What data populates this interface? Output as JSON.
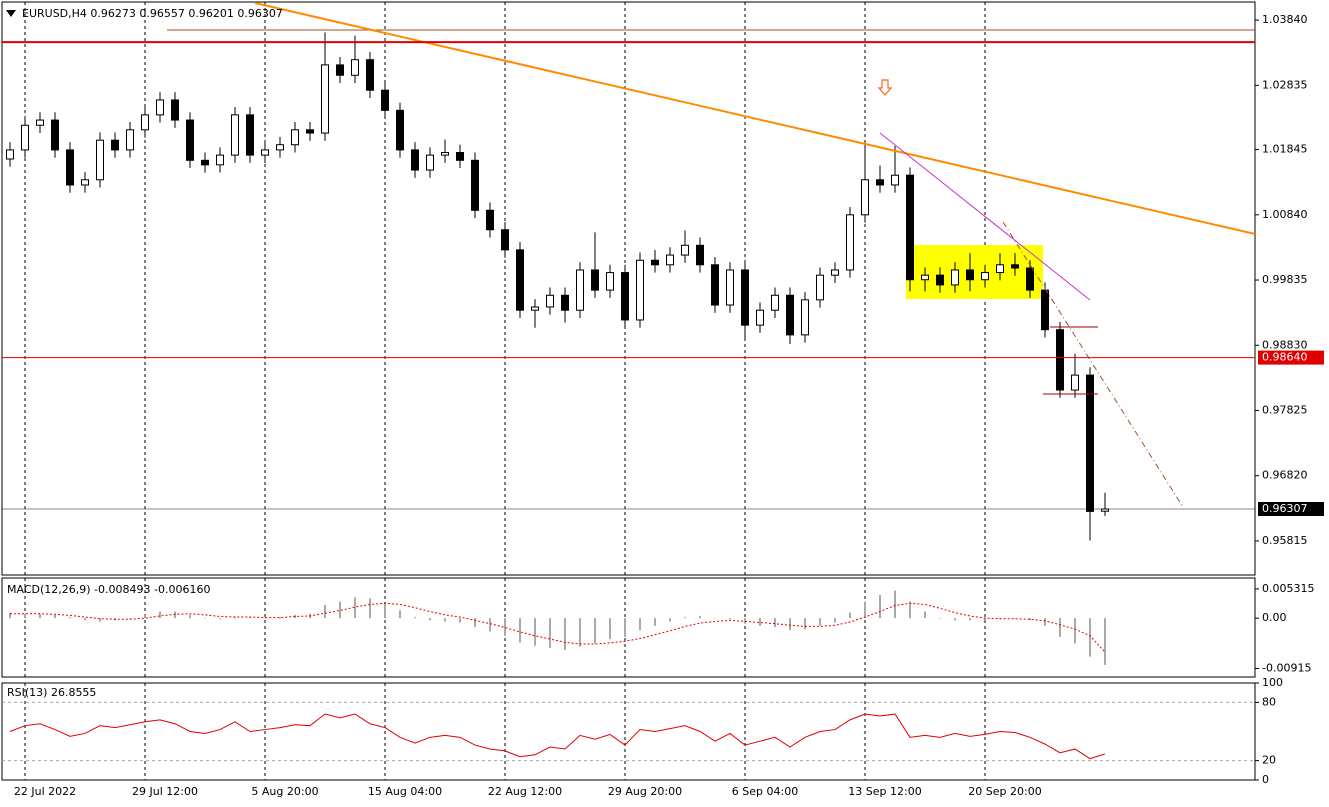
{
  "chart_data": [
    {
      "type": "candlestick",
      "title": "EURUSD,H4  0.96273 0.96557 0.96201 0.96307",
      "up_color": "#ffffff",
      "down_color": "#000000",
      "open": [
        1.017,
        1.0184,
        1.0222,
        1.023,
        1.0184,
        1.013,
        1.0138,
        1.0199,
        1.0184,
        1.0215,
        1.0238,
        1.0261,
        1.023,
        1.0168,
        1.0161,
        1.0176,
        1.0238,
        1.0176,
        1.0184,
        1.0192,
        1.0215,
        1.021,
        1.0315,
        1.0299,
        1.0323,
        1.0276,
        1.0245,
        1.0184,
        1.0153,
        1.0176,
        1.018,
        1.0168,
        1.0091,
        1.0061,
        1.003,
        0.9937,
        0.9942,
        0.996,
        0.9937,
        0.9999,
        0.9968,
        0.9995,
        0.9922,
        1.0014,
        1.0007,
        1.0022,
        1.0037,
        1.0007,
        0.9945,
        0.9999,
        0.9914,
        0.9937,
        0.996,
        0.9899,
        0.9953,
        0.9991,
        0.9999,
        1.0084,
        1.0138,
        1.013,
        1.0145,
        0.9984,
        0.9991,
        0.9976,
        0.9999,
        0.9984,
        0.9995,
        1.0007,
        1.0002,
        0.9968,
        0.9907,
        0.9814,
        0.9837,
        0.96273
      ],
      "high": [
        1.0196,
        1.0234,
        1.0242,
        1.0242,
        1.0196,
        1.015,
        1.0211,
        1.0211,
        1.0227,
        1.025,
        1.0273,
        1.0273,
        1.0242,
        1.018,
        1.0188,
        1.025,
        1.025,
        1.0196,
        1.0204,
        1.0227,
        1.0227,
        1.0365,
        1.0327,
        1.036,
        1.0335,
        1.0288,
        1.0257,
        1.0196,
        1.0188,
        1.02,
        1.0192,
        1.018,
        1.0103,
        1.0073,
        1.0042,
        0.9954,
        0.9972,
        0.9972,
        1.0011,
        1.0057,
        1.0007,
        1.0007,
        1.0026,
        1.003,
        1.0034,
        1.006,
        1.0049,
        1.0019,
        1.0011,
        1.0011,
        0.9949,
        0.9972,
        0.9972,
        0.9965,
        1.0003,
        1.0011,
        1.0096,
        1.0195,
        1.016,
        1.019,
        1.0157,
        1.0003,
        1.0003,
        1.0011,
        1.0025,
        1.0007,
        1.0025,
        1.0025,
        1.0014,
        0.998,
        0.9919,
        0.987,
        0.9849,
        0.96557
      ],
      "low": [
        1.0158,
        1.0172,
        1.021,
        1.0172,
        1.0118,
        1.0118,
        1.0126,
        1.0172,
        1.0172,
        1.0203,
        1.0226,
        1.0218,
        1.0156,
        1.0149,
        1.0149,
        1.0164,
        1.0164,
        1.0164,
        1.0172,
        1.018,
        1.0198,
        1.0198,
        1.0287,
        1.0287,
        1.0264,
        1.0233,
        1.0172,
        1.0141,
        1.0141,
        1.0164,
        1.0156,
        1.0079,
        1.0049,
        1.0018,
        0.9925,
        0.991,
        0.993,
        0.9918,
        0.9925,
        0.9956,
        0.9956,
        0.991,
        0.991,
        0.9995,
        0.9995,
        1.001,
        0.9995,
        0.9933,
        0.9933,
        0.989,
        0.9902,
        0.9925,
        0.9885,
        0.9887,
        0.9941,
        0.9979,
        0.9987,
        1.0072,
        1.0118,
        1.0118,
        0.9966,
        0.9966,
        0.9964,
        0.9964,
        0.9966,
        0.9972,
        0.9983,
        0.999,
        0.9956,
        0.9895,
        0.9802,
        0.9802,
        0.9582,
        0.96201
      ],
      "close": [
        1.0184,
        1.0222,
        1.023,
        1.0184,
        1.013,
        1.0138,
        1.0199,
        1.0184,
        1.0215,
        1.0238,
        1.0261,
        1.023,
        1.0168,
        1.0161,
        1.0176,
        1.0238,
        1.0176,
        1.0184,
        1.0192,
        1.0215,
        1.021,
        1.0315,
        1.0299,
        1.0323,
        1.0276,
        1.0245,
        1.0184,
        1.0153,
        1.0176,
        1.018,
        1.0168,
        1.0091,
        1.0061,
        1.003,
        0.9937,
        0.9942,
        0.996,
        0.9937,
        0.9999,
        0.9968,
        0.9995,
        0.9922,
        1.0014,
        1.0007,
        1.0022,
        1.0037,
        1.0007,
        0.9945,
        0.9999,
        0.9914,
        0.9937,
        0.996,
        0.9899,
        0.9953,
        0.9991,
        0.9999,
        1.0084,
        1.0138,
        1.013,
        1.0145,
        0.9984,
        0.9991,
        0.9976,
        0.9999,
        0.9984,
        0.9995,
        1.0007,
        1.0002,
        0.9968,
        0.9907,
        0.9814,
        0.9837,
        0.9627,
        0.96307
      ],
      "xlim": [
        -0.667,
        83
      ],
      "ylim": [
        0.9529,
        1.0415
      ],
      "yticks": [
        {
          "value": 1.0384,
          "label": "1.03840"
        },
        {
          "value": 1.02835,
          "label": "1.02835"
        },
        {
          "value": 1.01845,
          "label": "1.01845"
        },
        {
          "value": 1.0084,
          "label": "1.00840"
        },
        {
          "value": 0.99835,
          "label": "0.99835"
        },
        {
          "value": 0.9883,
          "label": "0.98830"
        },
        {
          "value": 0.97825,
          "label": "0.97825"
        },
        {
          "value": 0.9682,
          "label": "0.96820"
        },
        {
          "value": 0.95815,
          "label": "0.95815"
        }
      ],
      "xticks": [
        {
          "value": 1,
          "label": "22 Jul 2022"
        },
        {
          "value": 9,
          "label": "29 Jul 12:00"
        },
        {
          "value": 17,
          "label": "5 Aug 20:00"
        },
        {
          "value": 25,
          "label": "15 Aug 04:00"
        },
        {
          "value": 33,
          "label": "22 Aug 12:00"
        },
        {
          "value": 41,
          "label": "29 Aug 20:00"
        },
        {
          "value": 49,
          "label": "6 Sep 04:00"
        },
        {
          "value": 57,
          "label": "13 Sep 12:00"
        },
        {
          "value": 65,
          "label": "20 Sep 20:00"
        }
      ],
      "hlines": [
        {
          "value": 1.035,
          "color": "#e00000"
        },
        {
          "value": 0.9864,
          "label": "0.98640",
          "color": "#e00000"
        },
        {
          "value": 0.96307,
          "label": "0.96307",
          "color": "#000000"
        }
      ]
    },
    {
      "type": "macd",
      "title": "MACD(12,26,9) -0.008493 -0.006160",
      "xlim": [
        -0.667,
        83
      ],
      "ylim": [
        -0.0107,
        0.0073
      ],
      "yticks": [
        0.005315,
        {
          "value": 0,
          "label": "0.00"
        },
        -0.00915
      ],
      "series": [
        {
          "color": "#a9a9a9",
          "values": [
            0.001,
            0.0008,
            0.0008,
            0.0006,
            0.0002,
            -0.0004,
            -0.0006,
            -0.0004,
            0.0,
            0.0006,
            0.0012,
            0.0012,
            0.0006,
            0.0,
            -0.0002,
            0.0002,
            0.0002,
            0.0,
            0.0002,
            0.0006,
            0.0008,
            0.0024,
            0.003,
            0.0038,
            0.0036,
            0.0028,
            0.0014,
            0.0002,
            -0.0004,
            -0.0006,
            -0.0008,
            -0.0016,
            -0.0024,
            -0.0032,
            -0.0044,
            -0.005,
            -0.0054,
            -0.0058,
            -0.0052,
            -0.0046,
            -0.0038,
            -0.0034,
            -0.0022,
            -0.0014,
            -0.0006,
            0.0002,
            0.0004,
            0.0,
            -0.0002,
            -0.001,
            -0.0014,
            -0.0016,
            -0.0022,
            -0.002,
            -0.0014,
            -0.0008,
            0.001,
            0.003,
            0.0042,
            0.005,
            0.003,
            0.0012,
            0.0,
            -0.0004,
            -0.0004,
            -0.0004,
            -0.0002,
            0.0,
            -0.0004,
            -0.0014,
            -0.0034,
            -0.0046,
            -0.007,
            -0.008493
          ]
        },
        {
          "color": "#e00000",
          "values": [
            0.0008,
            0.0008,
            0.0008,
            0.0007,
            0.0005,
            0.0002,
            -0.0001,
            -0.0002,
            -0.0002,
            0.0,
            0.0004,
            0.0007,
            0.0008,
            0.0006,
            0.0003,
            0.0002,
            0.0002,
            0.0001,
            0.0001,
            0.0003,
            0.0004,
            0.0009,
            0.0014,
            0.002,
            0.0025,
            0.0027,
            0.0025,
            0.0019,
            0.0012,
            0.0006,
            0.0002,
            -0.0004,
            -0.001,
            -0.0017,
            -0.0025,
            -0.0032,
            -0.0038,
            -0.0044,
            -0.0047,
            -0.0047,
            -0.0045,
            -0.0042,
            -0.0037,
            -0.003,
            -0.0023,
            -0.0015,
            -0.0009,
            -0.0006,
            -0.0004,
            -0.0006,
            -0.0008,
            -0.001,
            -0.0013,
            -0.0015,
            -0.0015,
            -0.0013,
            -0.0007,
            0.0002,
            0.0012,
            0.0023,
            0.0027,
            0.0025,
            0.0018,
            0.001,
            0.0004,
            0.0,
            -0.0001,
            -0.0001,
            -0.0002,
            -0.0005,
            -0.0012,
            -0.002,
            -0.0032,
            -0.00616
          ]
        }
      ]
    },
    {
      "type": "line",
      "title": "RSI(13) 26.8555",
      "color": "#e00000",
      "xlim": [
        -0.667,
        83
      ],
      "ylim": [
        0,
        100
      ],
      "yticks": [
        100,
        80,
        20,
        0
      ],
      "levels": [
        80,
        20
      ],
      "values": [
        50,
        56,
        58,
        52,
        45,
        48,
        56,
        54,
        57,
        60,
        62,
        58,
        50,
        48,
        52,
        60,
        50,
        52,
        54,
        57,
        56,
        68,
        64,
        68,
        58,
        54,
        44,
        38,
        44,
        46,
        44,
        36,
        32,
        30,
        24,
        26,
        34,
        32,
        46,
        42,
        47,
        36,
        52,
        50,
        53,
        56,
        50,
        40,
        48,
        36,
        40,
        44,
        34,
        44,
        50,
        52,
        62,
        68,
        66,
        68,
        44,
        46,
        44,
        48,
        45,
        47,
        50,
        49,
        44,
        37,
        28,
        32,
        22,
        26.8555
      ]
    }
  ]
}
